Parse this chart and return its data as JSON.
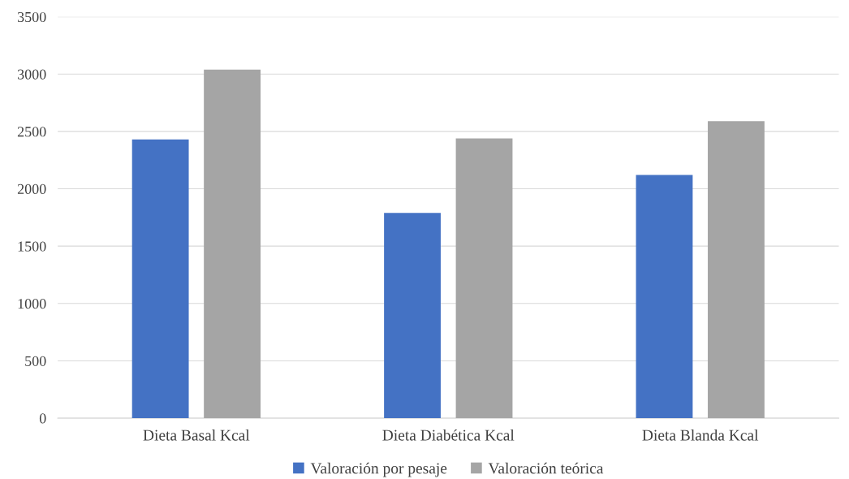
{
  "chart_data": {
    "type": "bar",
    "categories": [
      "Dieta Basal Kcal",
      "Dieta Diabética Kcal",
      "Dieta Blanda Kcal"
    ],
    "series": [
      {
        "name": "Valoración por pesaje",
        "color": "#4472c4",
        "values": [
          2430,
          1790,
          2120
        ]
      },
      {
        "name": "Valoración teórica",
        "color": "#a5a5a5",
        "values": [
          3040,
          2440,
          2590
        ]
      }
    ],
    "ylim": [
      0,
      3500
    ],
    "yticks": [
      0,
      500,
      1000,
      1500,
      2000,
      2500,
      3000,
      3500
    ],
    "grid": "y",
    "legend": "bottom"
  }
}
